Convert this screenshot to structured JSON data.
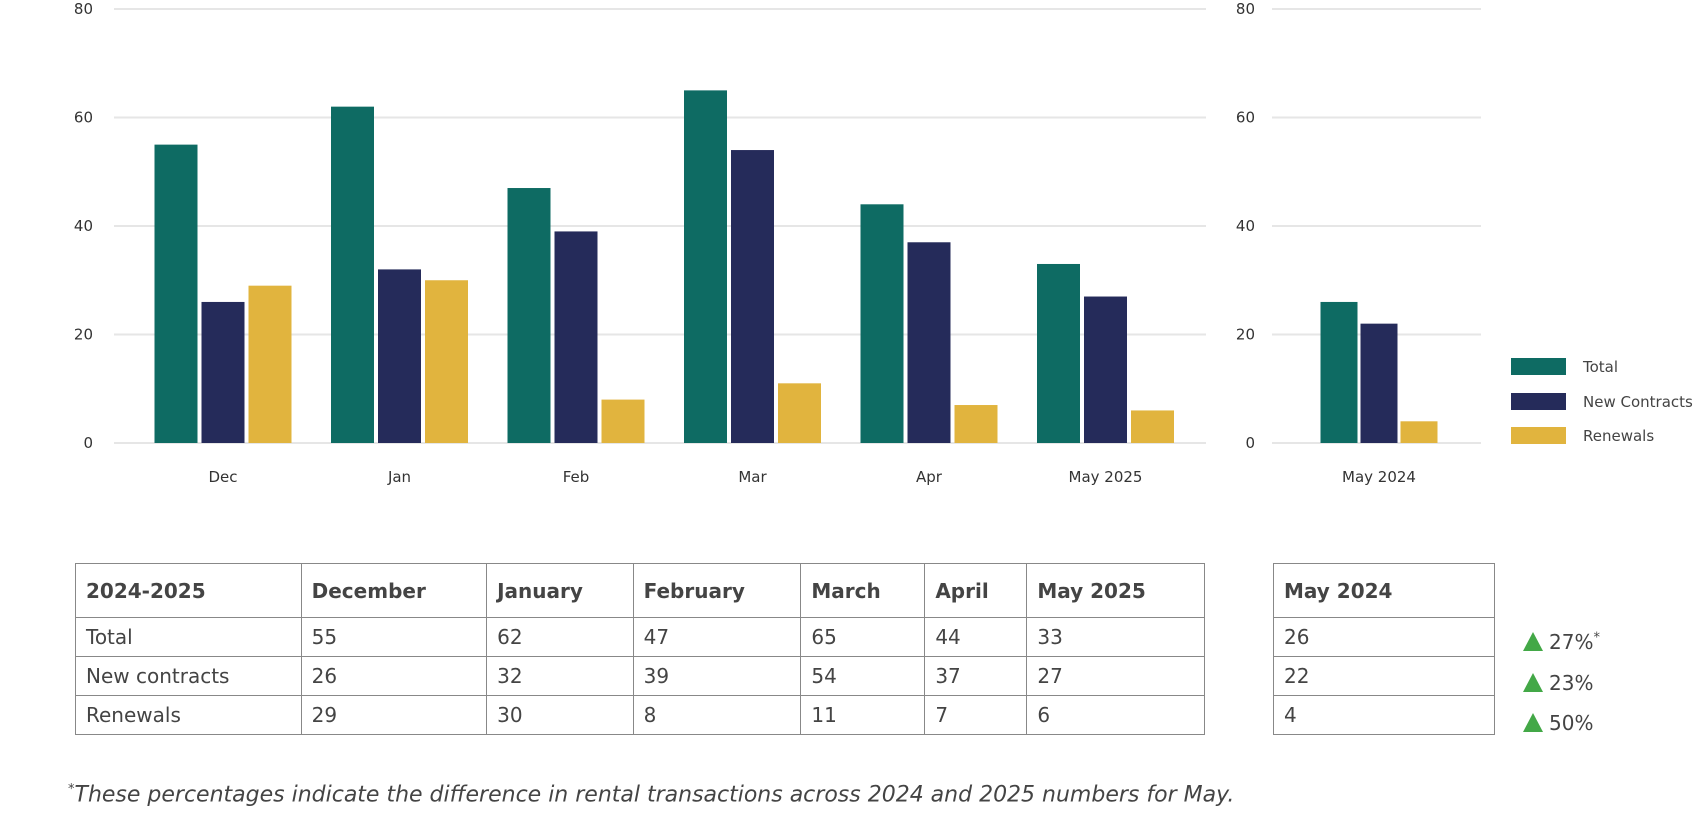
{
  "chart_data": [
    {
      "type": "bar",
      "categories": [
        "Dec",
        "Jan",
        "Feb",
        "Mar",
        "Apr",
        "May 2025"
      ],
      "series": [
        {
          "name": "Total",
          "values": [
            55,
            62,
            47,
            65,
            44,
            33
          ]
        },
        {
          "name": "New Contracts",
          "values": [
            26,
            32,
            39,
            54,
            37,
            27
          ]
        },
        {
          "name": "Renewals",
          "values": [
            29,
            30,
            8,
            11,
            7,
            6
          ]
        }
      ],
      "yticks": [
        0,
        20,
        40,
        60,
        80
      ],
      "ylim": [
        0,
        80
      ],
      "grid": true
    },
    {
      "type": "bar",
      "categories": [
        "May 2024"
      ],
      "series": [
        {
          "name": "Total",
          "values": [
            26
          ]
        },
        {
          "name": "New Contracts",
          "values": [
            22
          ]
        },
        {
          "name": "Renewals",
          "values": [
            4
          ]
        }
      ],
      "yticks": [
        0,
        20,
        40,
        60,
        80
      ],
      "ylim": [
        0,
        80
      ],
      "grid": true,
      "legend": "right"
    }
  ],
  "colors": {
    "Total": "#0e6b63",
    "New Contracts": "#252b5a",
    "Renewals": "#e1b43e",
    "up": "#43a847"
  },
  "legend": [
    "Total",
    "New Contracts",
    "Renewals"
  ],
  "table": {
    "headers": [
      "2024-2025",
      "December",
      "January",
      "February",
      "March",
      "April",
      "May 2025"
    ],
    "rows": [
      [
        "Total",
        "55",
        "62",
        "47",
        "65",
        "44",
        "33"
      ],
      [
        "New contracts",
        "26",
        "32",
        "39",
        "54",
        "37",
        "27"
      ],
      [
        "Renewals",
        "29",
        "30",
        "8",
        "11",
        "7",
        "6"
      ]
    ]
  },
  "table2": {
    "header": "May 2024",
    "rows": [
      "26",
      "22",
      "4"
    ]
  },
  "changes": [
    "27%",
    "23%",
    "50%"
  ],
  "footnote_mark": "*",
  "footnote": "These percentages indicate the difference in rental transactions across 2024 and 2025 numbers for May."
}
